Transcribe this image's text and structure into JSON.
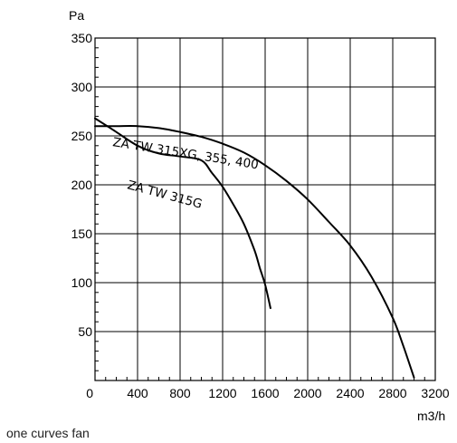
{
  "chart_data": {
    "type": "line",
    "xlabel": "m3/h",
    "ylabel": "Pa",
    "xlim": [
      0,
      3200
    ],
    "ylim": [
      0,
      350
    ],
    "x_ticks": [
      "0",
      "400",
      "800",
      "1200",
      "1600",
      "2000",
      "2400",
      "2800",
      "3200"
    ],
    "y_ticks": [
      "0",
      "50",
      "100",
      "150",
      "200",
      "250",
      "300",
      "350"
    ],
    "grid": true,
    "series": [
      {
        "name": "ZA TW 315XG, 355, 400",
        "x": [
          0,
          200,
          400,
          600,
          800,
          1000,
          1200,
          1400,
          1600,
          1800,
          2000,
          2200,
          2400,
          2600,
          2800,
          2900,
          3000
        ],
        "y": [
          260,
          260,
          260,
          258,
          254,
          249,
          242,
          233,
          220,
          204,
          185,
          162,
          138,
          106,
          64,
          35,
          3
        ]
      },
      {
        "name": "ZA TW 315G",
        "x": [
          0,
          200,
          400,
          600,
          800,
          1000,
          1100,
          1200,
          1300,
          1400,
          1500,
          1550,
          1600,
          1650
        ],
        "y": [
          268,
          254,
          240,
          232,
          229,
          225,
          212,
          198,
          180,
          160,
          133,
          115,
          98,
          74
        ]
      }
    ]
  },
  "caption": "one curves fan"
}
